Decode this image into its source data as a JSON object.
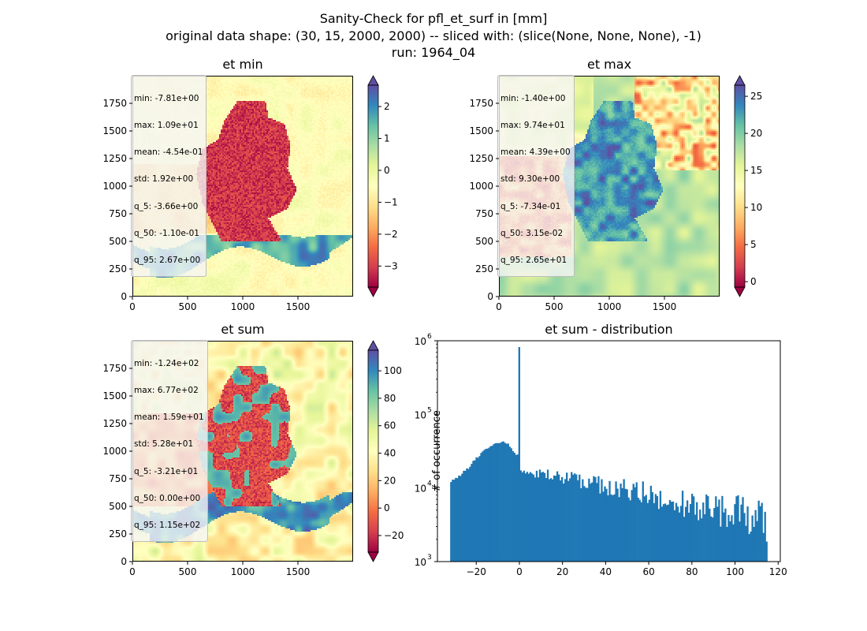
{
  "suptitle": {
    "line1": "Sanity-Check for pfl_et_surf in [mm]",
    "line2": "original data shape: (30, 15, 2000, 2000) -- sliced with: (slice(None, None, None), -1)",
    "line3": "run: 1964_04"
  },
  "panels": {
    "min": {
      "title": "et min",
      "stats": [
        "min: -7.81e+00",
        "max: 1.09e+01",
        "mean: -4.54e-01",
        "std: 1.92e+00",
        "q_5: -3.66e+00",
        "q_50: -1.10e-01",
        "q_95: 2.67e+00"
      ],
      "xticks": [
        "0",
        "500",
        "1000",
        "1500"
      ],
      "yticks": [
        "0",
        "250",
        "500",
        "750",
        "1000",
        "1250",
        "1500",
        "1750"
      ],
      "cbar_ticks": [
        {
          "v": 2,
          "label": "2"
        },
        {
          "v": 1,
          "label": "1"
        },
        {
          "v": 0,
          "label": "0"
        },
        {
          "v": -1,
          "label": "−1"
        },
        {
          "v": -2,
          "label": "−2"
        },
        {
          "v": -3,
          "label": "−3"
        }
      ],
      "vmin": -3.66,
      "vmax": 2.67
    },
    "max": {
      "title": "et max",
      "stats": [
        "min: -1.40e+00",
        "max: 9.74e+01",
        "mean: 4.39e+00",
        "std: 9.30e+00",
        "q_5: -7.34e-01",
        "q_50: 3.15e-02",
        "q_95: 2.65e+01"
      ],
      "xticks": [
        "0",
        "500",
        "1000",
        "1500"
      ],
      "yticks": [
        "0",
        "250",
        "500",
        "750",
        "1000",
        "1250",
        "1500",
        "1750"
      ],
      "cbar_ticks": [
        {
          "v": 25,
          "label": "25"
        },
        {
          "v": 20,
          "label": "20"
        },
        {
          "v": 15,
          "label": "15"
        },
        {
          "v": 10,
          "label": "10"
        },
        {
          "v": 5,
          "label": "5"
        },
        {
          "v": 0,
          "label": "0"
        }
      ],
      "vmin": -0.734,
      "vmax": 26.5
    },
    "sum": {
      "title": "et sum",
      "stats": [
        "min: -1.24e+02",
        "max: 6.77e+02",
        "mean: 1.59e+01",
        "std: 5.28e+01",
        "q_5: -3.21e+01",
        "q_50: 0.00e+00",
        "q_95: 1.15e+02"
      ],
      "xticks": [
        "0",
        "500",
        "1000",
        "1500"
      ],
      "yticks": [
        "0",
        "250",
        "500",
        "750",
        "1000",
        "1250",
        "1500",
        "1750"
      ],
      "cbar_ticks": [
        {
          "v": 100,
          "label": "100"
        },
        {
          "v": 80,
          "label": "80"
        },
        {
          "v": 60,
          "label": "60"
        },
        {
          "v": 40,
          "label": "40"
        },
        {
          "v": 20,
          "label": "20"
        },
        {
          "v": 0,
          "label": "0"
        },
        {
          "v": -20,
          "label": "−20"
        }
      ],
      "vmin": -32.1,
      "vmax": 115
    }
  },
  "chart_data": {
    "type": "bar",
    "title": "et sum - distribution",
    "ylabel": "# of occurrence",
    "xlabel": "",
    "yscale": "log",
    "xlim": [
      -38,
      121
    ],
    "ylim_exponent": [
      3,
      6
    ],
    "xticks": [
      "−20",
      "0",
      "20",
      "40",
      "60",
      "80",
      "100",
      "120"
    ],
    "xtick_values": [
      -20,
      0,
      20,
      40,
      60,
      80,
      100,
      120
    ],
    "yticks": [
      {
        "base": "10",
        "exp": "3",
        "value": 1000
      },
      {
        "base": "10",
        "exp": "4",
        "value": 10000
      },
      {
        "base": "10",
        "exp": "5",
        "value": 100000
      },
      {
        "base": "10",
        "exp": "6",
        "value": 1000000
      }
    ],
    "bar_color": "#1f77b4",
    "bin_start": -32.1,
    "bin_end": 115,
    "spike": {
      "x": 0,
      "count": 820000
    },
    "profile_x": [
      -32.1,
      -30,
      -28,
      -26,
      -24,
      -22,
      -20,
      -18,
      -16,
      -14,
      -12,
      -10,
      -8,
      -6,
      -4,
      -2,
      -0.5,
      0.5,
      2,
      6,
      10,
      15,
      20,
      30,
      40,
      50,
      60,
      70,
      80,
      90,
      100,
      110,
      115
    ],
    "profile_y": [
      12000,
      13000,
      14500,
      16500,
      18500,
      21500,
      25000,
      28500,
      32000,
      36000,
      39000,
      41000,
      42000,
      40000,
      36000,
      30000,
      27000,
      17500,
      16500,
      16000,
      15500,
      15000,
      14000,
      12500,
      10500,
      9300,
      8200,
      6900,
      6100,
      5300,
      4700,
      4000,
      3400
    ]
  },
  "colors": {
    "spectral": [
      "#9e0142",
      "#d53e4f",
      "#f46d43",
      "#fdae61",
      "#fee08b",
      "#ffffbf",
      "#e6f598",
      "#abdda4",
      "#66c2a5",
      "#3288bd",
      "#5e4fa2"
    ]
  }
}
